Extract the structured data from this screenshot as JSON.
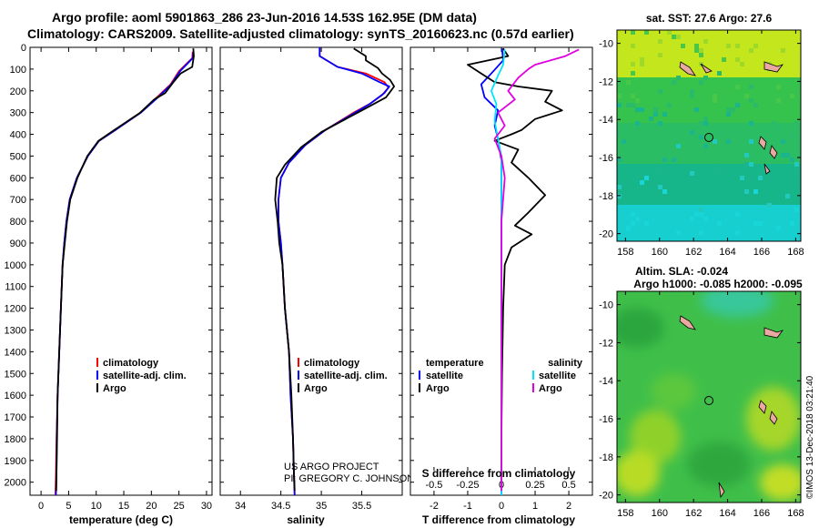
{
  "header": {
    "title_line1": "Argo profile: aoml 5901863_286 23-Jun-2016 14.53S 162.95E (DM data)",
    "title_line2": "Climatology: CARS2009. Satellite-adjusted climatology: synTS_20160623.nc (0.57d earlier)"
  },
  "colors": {
    "climatology": "#ff0000",
    "satellite": "#0000ff",
    "argo": "#000000",
    "satellite_salinity": "#00e5ff",
    "argo_salinity": "#e000e0"
  },
  "depth_axis": {
    "ticks": [
      "0",
      "100",
      "200",
      "300",
      "400",
      "500",
      "600",
      "700",
      "800",
      "900",
      "1000",
      "1100",
      "1200",
      "1300",
      "1400",
      "1500",
      "1600",
      "1700",
      "1800",
      "1900",
      "2000"
    ],
    "ylim": [
      0,
      2060
    ]
  },
  "chart_data": [
    {
      "type": "line",
      "id": "temperature",
      "xlabel": "temperature (deg C)",
      "xlim": [
        -2,
        31
      ],
      "x_ticks": [
        "0",
        "5",
        "10",
        "15",
        "20",
        "25",
        "30"
      ],
      "legend": [
        "climatology",
        "satellite-adj. clim.",
        "Argo"
      ],
      "series": [
        {
          "name": "climatology",
          "color": "#ff0000",
          "points": [
            [
              27.5,
              20
            ],
            [
              27.4,
              50
            ],
            [
              25,
              110
            ],
            [
              23.5,
              170
            ],
            [
              21,
              230
            ],
            [
              18,
              300
            ],
            [
              13.5,
              380
            ],
            [
              10.5,
              430
            ],
            [
              8.5,
              500
            ],
            [
              6.5,
              600
            ],
            [
              5.2,
              700
            ],
            [
              4.6,
              800
            ],
            [
              4.2,
              900
            ],
            [
              3.9,
              1000
            ],
            [
              3.6,
              1200
            ],
            [
              3.3,
              1400
            ],
            [
              3.0,
              1600
            ],
            [
              2.8,
              1800
            ],
            [
              2.7,
              1950
            ],
            [
              2.6,
              2060
            ]
          ]
        },
        {
          "name": "satellite-adj. clim.",
          "color": "#0000ff",
          "points": [
            [
              27.6,
              20
            ],
            [
              27.5,
              50
            ],
            [
              25.2,
              110
            ],
            [
              23.6,
              170
            ],
            [
              21.2,
              230
            ],
            [
              18.1,
              300
            ],
            [
              13.5,
              380
            ],
            [
              10.5,
              430
            ],
            [
              8.5,
              500
            ],
            [
              6.5,
              600
            ],
            [
              5.2,
              700
            ],
            [
              4.6,
              800
            ],
            [
              4.2,
              900
            ],
            [
              3.9,
              1000
            ],
            [
              3.6,
              1200
            ],
            [
              3.3,
              1400
            ],
            [
              3.0,
              1600
            ],
            [
              2.85,
              1800
            ],
            [
              2.8,
              1950
            ],
            [
              2.7,
              2060
            ]
          ]
        },
        {
          "name": "Argo",
          "color": "#000000",
          "points": [
            [
              27.6,
              5
            ],
            [
              27.7,
              40
            ],
            [
              27.4,
              90
            ],
            [
              25.3,
              120
            ],
            [
              24,
              160
            ],
            [
              22.5,
              210
            ],
            [
              20.5,
              240
            ],
            [
              18,
              300
            ],
            [
              13.3,
              380
            ],
            [
              10.4,
              430
            ],
            [
              8.4,
              500
            ],
            [
              6.6,
              600
            ],
            [
              5.3,
              700
            ],
            [
              4.7,
              800
            ],
            [
              4.3,
              900
            ],
            [
              3.9,
              1000
            ],
            [
              3.6,
              1200
            ],
            [
              3.3,
              1400
            ],
            [
              3.0,
              1600
            ],
            [
              2.9,
              1800
            ],
            [
              2.8,
              1950
            ],
            [
              2.75,
              2040
            ]
          ]
        }
      ]
    },
    {
      "type": "line",
      "id": "salinity",
      "xlabel": "salinity",
      "xlim": [
        33.75,
        36.0
      ],
      "x_ticks": [
        "34",
        "34.5",
        "35",
        "35.5"
      ],
      "legend": [
        "climatology",
        "satellite-adj. clim.",
        "Argo"
      ],
      "series": [
        {
          "name": "climatology",
          "color": "#ff0000",
          "points": [
            [
              34.98,
              0
            ],
            [
              34.98,
              40
            ],
            [
              35.2,
              90
            ],
            [
              35.55,
              120
            ],
            [
              35.78,
              160
            ],
            [
              35.83,
              185
            ],
            [
              35.75,
              220
            ],
            [
              35.6,
              260
            ],
            [
              35.4,
              300
            ],
            [
              35.05,
              380
            ],
            [
              34.8,
              450
            ],
            [
              34.6,
              530
            ],
            [
              34.5,
              600
            ],
            [
              34.47,
              700
            ],
            [
              34.47,
              800
            ],
            [
              34.5,
              900
            ],
            [
              34.52,
              1000
            ],
            [
              34.55,
              1200
            ],
            [
              34.6,
              1400
            ],
            [
              34.62,
              1600
            ],
            [
              34.65,
              1800
            ],
            [
              34.66,
              1950
            ],
            [
              34.67,
              2060
            ]
          ]
        },
        {
          "name": "satellite-adj. clim.",
          "color": "#0000ff",
          "points": [
            [
              34.98,
              0
            ],
            [
              34.98,
              40
            ],
            [
              35.2,
              90
            ],
            [
              35.5,
              120
            ],
            [
              35.72,
              160
            ],
            [
              35.84,
              180
            ],
            [
              35.78,
              210
            ],
            [
              35.6,
              260
            ],
            [
              35.42,
              300
            ],
            [
              35.05,
              380
            ],
            [
              34.8,
              450
            ],
            [
              34.6,
              530
            ],
            [
              34.5,
              600
            ],
            [
              34.47,
              700
            ],
            [
              34.47,
              800
            ],
            [
              34.5,
              900
            ],
            [
              34.52,
              1000
            ],
            [
              34.55,
              1200
            ],
            [
              34.6,
              1400
            ],
            [
              34.62,
              1600
            ],
            [
              34.65,
              1800
            ],
            [
              34.66,
              1950
            ],
            [
              34.67,
              2060
            ]
          ]
        },
        {
          "name": "Argo",
          "color": "#000000",
          "points": [
            [
              35.4,
              5
            ],
            [
              35.55,
              40
            ],
            [
              35.55,
              60
            ],
            [
              35.7,
              95
            ],
            [
              35.75,
              120
            ],
            [
              35.85,
              150
            ],
            [
              35.9,
              180
            ],
            [
              35.8,
              230
            ],
            [
              35.55,
              280
            ],
            [
              35.3,
              330
            ],
            [
              35.0,
              390
            ],
            [
              34.75,
              460
            ],
            [
              34.55,
              540
            ],
            [
              34.45,
              600
            ],
            [
              34.43,
              700
            ],
            [
              34.46,
              800
            ],
            [
              34.48,
              900
            ],
            [
              34.52,
              1000
            ],
            [
              34.55,
              1200
            ],
            [
              34.6,
              1400
            ],
            [
              34.63,
              1600
            ],
            [
              34.65,
              1800
            ],
            [
              34.66,
              1950
            ],
            [
              34.67,
              2040
            ]
          ]
        }
      ]
    },
    {
      "type": "line",
      "id": "difference",
      "xlabel": "T difference from climatology",
      "xlabel_top": "S difference from climatology",
      "xlim": [
        -2.7,
        2.7
      ],
      "x_ticks": [
        "-2",
        "-1",
        "0",
        "1",
        "2"
      ],
      "x_ticks_top": [
        "-0.5",
        "-0.25",
        "0",
        "0.25",
        "0.5"
      ],
      "legend_left_title": "temperature",
      "legend_right_title": "salinity",
      "legend_left": [
        "satellite",
        "Argo"
      ],
      "legend_right": [
        "satellite",
        "Argo"
      ],
      "series": [
        {
          "name": "satellite",
          "group": "temperature",
          "color": "#0000ff",
          "points": [
            [
              0.02,
              5
            ],
            [
              0.05,
              60
            ],
            [
              -0.3,
              120
            ],
            [
              -0.6,
              170
            ],
            [
              -0.5,
              230
            ],
            [
              -0.1,
              290
            ],
            [
              -0.2,
              360
            ],
            [
              -0.1,
              420
            ],
            [
              0,
              520
            ],
            [
              0,
              700
            ],
            [
              0,
              900
            ],
            [
              0,
              1100
            ],
            [
              0,
              1400
            ],
            [
              0,
              1700
            ],
            [
              0,
              2060
            ]
          ]
        },
        {
          "name": "Argo",
          "group": "temperature",
          "color": "#000000",
          "points": [
            [
              0.05,
              5
            ],
            [
              0.2,
              40
            ],
            [
              -1.0,
              80
            ],
            [
              -0.6,
              120
            ],
            [
              -0.2,
              160
            ],
            [
              0.5,
              180
            ],
            [
              1.5,
              200
            ],
            [
              1.3,
              250
            ],
            [
              1.8,
              290
            ],
            [
              1.0,
              330
            ],
            [
              0.6,
              380
            ],
            [
              0.3,
              400
            ],
            [
              -0.2,
              430
            ],
            [
              0.5,
              470
            ],
            [
              0.3,
              530
            ],
            [
              0.8,
              600
            ],
            [
              1.3,
              680
            ],
            [
              0.8,
              760
            ],
            [
              0.4,
              820
            ],
            [
              0.9,
              860
            ],
            [
              0.3,
              920
            ],
            [
              0.1,
              1000
            ],
            [
              0.05,
              1200
            ],
            [
              0.02,
              1500
            ],
            [
              0,
              1800
            ],
            [
              0,
              2040
            ]
          ]
        },
        {
          "name": "satellite",
          "group": "salinity",
          "color": "#00e5ff",
          "points": [
            [
              0.1,
              10
            ],
            [
              0.05,
              80
            ],
            [
              -0.1,
              130
            ],
            [
              -0.3,
              200
            ],
            [
              -0.15,
              260
            ],
            [
              -0.2,
              340
            ],
            [
              -0.1,
              420
            ],
            [
              0,
              500
            ],
            [
              0,
              800
            ],
            [
              0,
              1200
            ],
            [
              0,
              1600
            ],
            [
              0,
              2060
            ]
          ]
        },
        {
          "name": "Argo",
          "group": "salinity",
          "color": "#e000e0",
          "points": [
            [
              2.3,
              10
            ],
            [
              1.9,
              40
            ],
            [
              1.0,
              80
            ],
            [
              0.8,
              100
            ],
            [
              0.5,
              140
            ],
            [
              0.2,
              200
            ],
            [
              0.4,
              240
            ],
            [
              -0.1,
              300
            ],
            [
              0.1,
              360
            ],
            [
              -0.2,
              420
            ],
            [
              0,
              500
            ],
            [
              0.1,
              600
            ],
            [
              0,
              800
            ],
            [
              0,
              1200
            ],
            [
              0,
              1600
            ],
            [
              0,
              2040
            ]
          ]
        }
      ]
    }
  ],
  "credits": {
    "line1": "US ARGO PROJECT",
    "line2": "PI: GREGORY C. JOHNSON"
  },
  "maps": {
    "lon_ticks": [
      "158",
      "160",
      "162",
      "164",
      "166",
      "168"
    ],
    "lat_ticks": [
      "-10",
      "-12",
      "-14",
      "-16",
      "-18",
      "-20"
    ],
    "top": {
      "label": "sat. SST: 27.6 Argo: 27.6"
    },
    "bottom": {
      "label1": "Altim. SLA: -0.024",
      "label2": "Argo h1000: -0.085 h2000: -0.095"
    },
    "watermark": "©IMOS 13-Dec-2018 03:21:40"
  }
}
